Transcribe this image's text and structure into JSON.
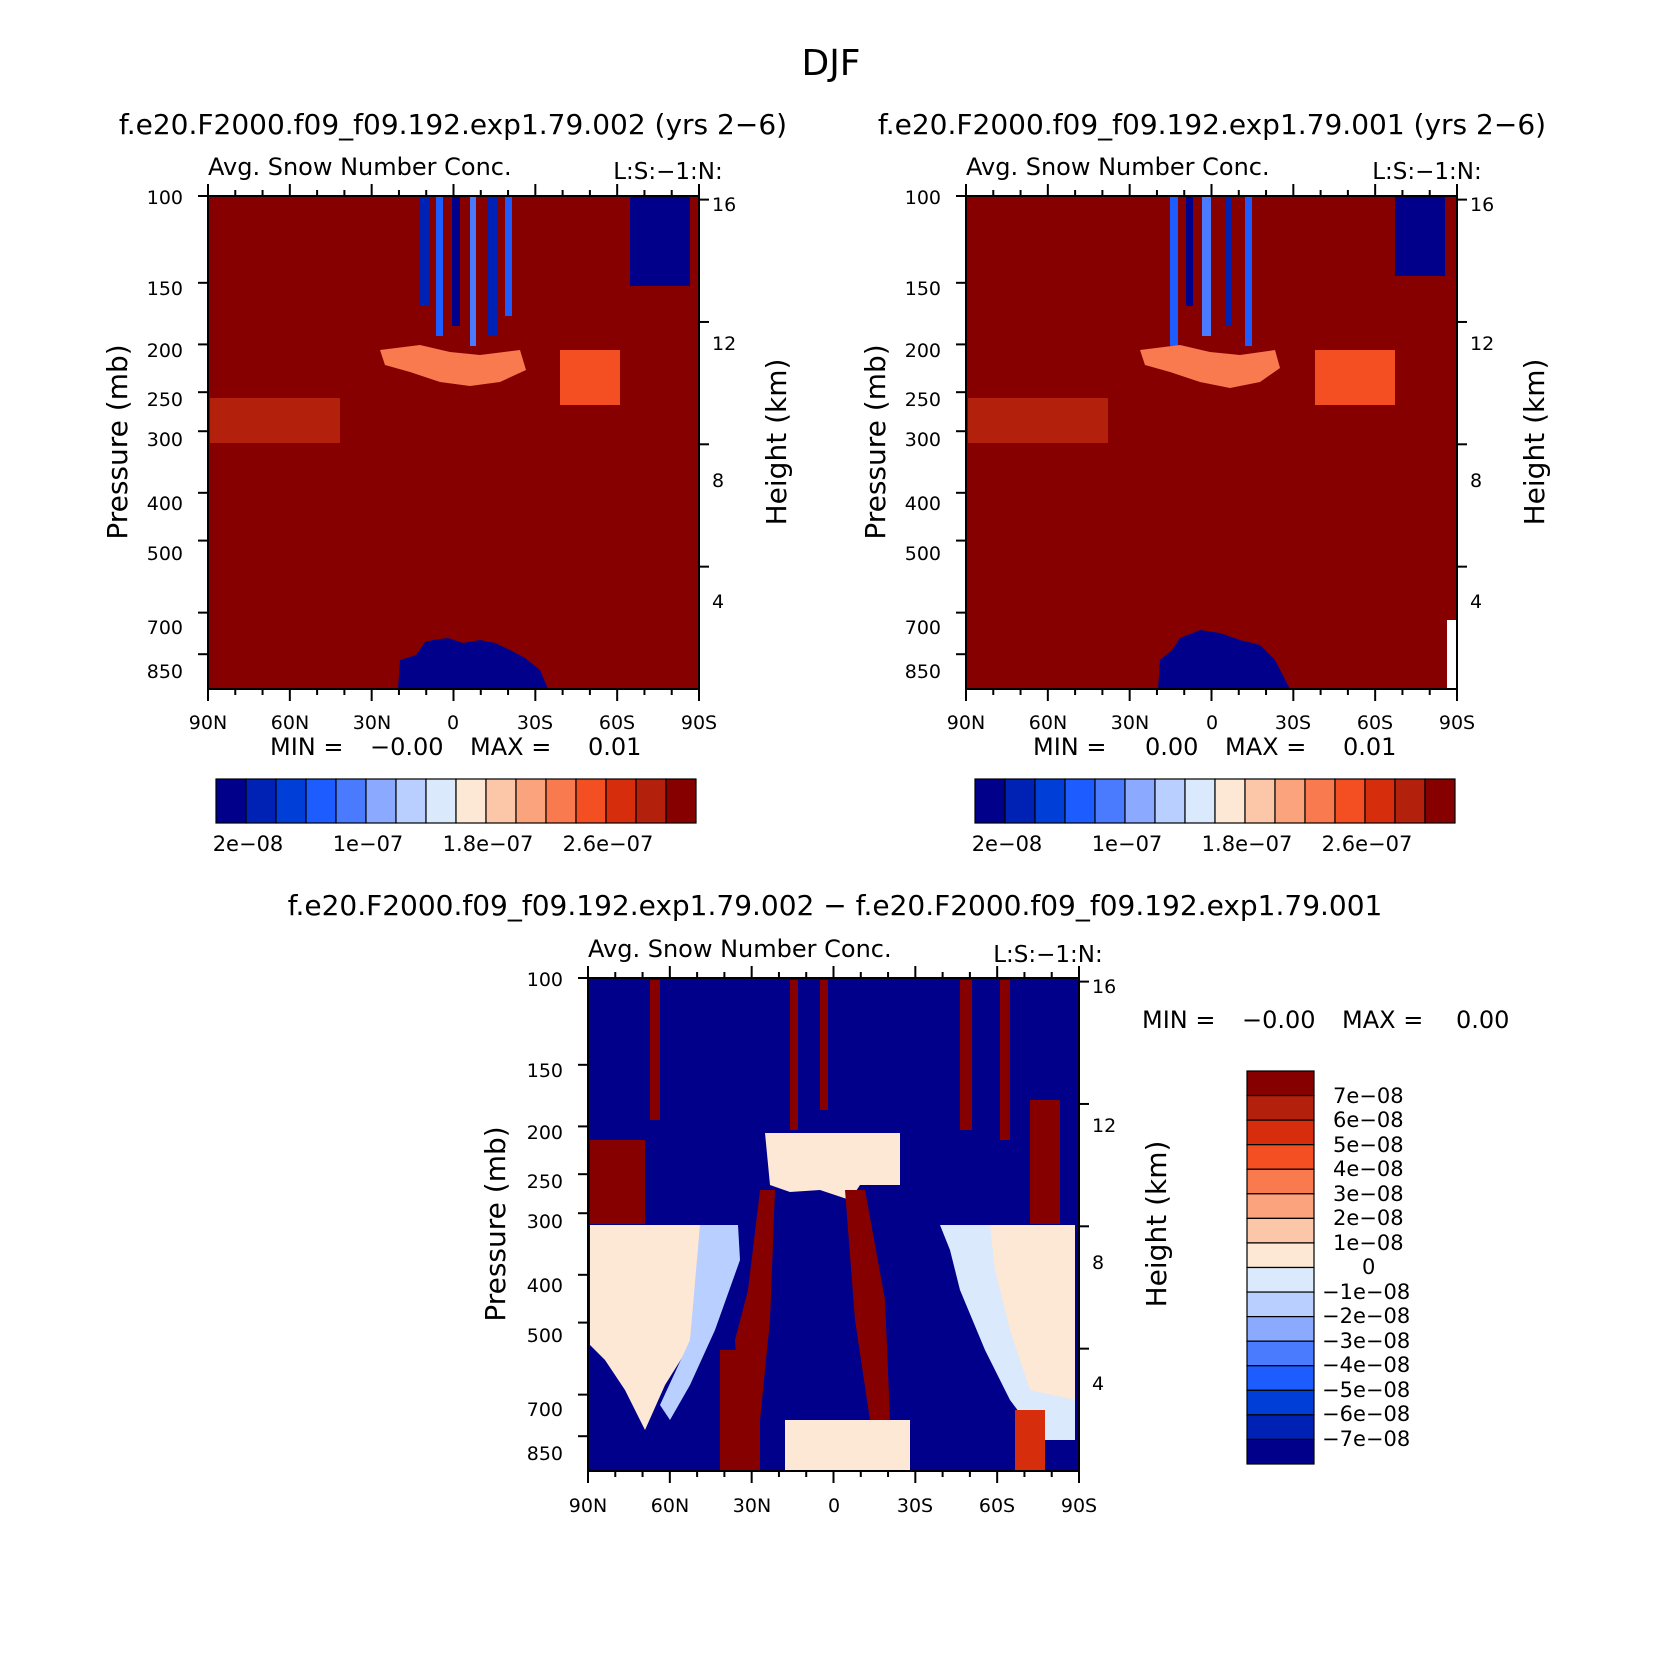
{
  "page_title": "DJF",
  "chart_data": [
    {
      "type": "heatmap",
      "run_label": "f.e20.F2000.f09_f09.192.exp1.79.002 (yrs 2−6)",
      "title": "Avg. Snow Number Conc.",
      "units_label": "L:S:−1:N:",
      "xlabel": "",
      "ylabel": "Pressure (mb)",
      "y2label": "Height (km)",
      "x_ticks": [
        "90N",
        "60N",
        "30N",
        "0",
        "30S",
        "60S",
        "90S"
      ],
      "y_ticks": [
        "100",
        "150",
        "200",
        "250",
        "300",
        "400",
        "500",
        "700",
        "850"
      ],
      "y_tick_values": [
        100,
        150,
        200,
        250,
        300,
        400,
        500,
        700,
        850
      ],
      "y2_ticks": [
        "16",
        "12",
        "8",
        "4"
      ],
      "y2_tick_values": [
        16,
        12,
        8,
        4
      ],
      "ylim": [
        100,
        1000
      ],
      "xlim": [
        90,
        -90
      ],
      "min_label": "MIN =",
      "min_value": "−0.00",
      "max_label": "MAX =",
      "max_value": "0.01",
      "colorbar_labels": [
        "2e−08",
        "1e−07",
        "1.8e−07",
        "2.6e−07"
      ],
      "colorbar_colors": [
        "#00008b",
        "#0022b4",
        "#003ed8",
        "#1d5cff",
        "#4a7bff",
        "#8aa9ff",
        "#b8cfff",
        "#dae9fb",
        "#fde8d5",
        "#fcc7a8",
        "#fba37c",
        "#f97a4e",
        "#f44f22",
        "#d62d0c",
        "#b3200b",
        "#870000"
      ]
    },
    {
      "type": "heatmap",
      "run_label": "f.e20.F2000.f09_f09.192.exp1.79.001 (yrs 2−6)",
      "title": "Avg. Snow Number Conc.",
      "units_label": "L:S:−1:N:",
      "xlabel": "",
      "ylabel": "Pressure (mb)",
      "y2label": "Height (km)",
      "x_ticks": [
        "90N",
        "60N",
        "30N",
        "0",
        "30S",
        "60S",
        "90S"
      ],
      "y_ticks": [
        "100",
        "150",
        "200",
        "250",
        "300",
        "400",
        "500",
        "700",
        "850"
      ],
      "y_tick_values": [
        100,
        150,
        200,
        250,
        300,
        400,
        500,
        700,
        850
      ],
      "y2_ticks": [
        "16",
        "12",
        "8",
        "4"
      ],
      "y2_tick_values": [
        16,
        12,
        8,
        4
      ],
      "ylim": [
        100,
        1000
      ],
      "xlim": [
        90,
        -90
      ],
      "min_label": "MIN =",
      "min_value": "0.00",
      "max_label": "MAX =",
      "max_value": "0.01",
      "colorbar_labels": [
        "2e−08",
        "1e−07",
        "1.8e−07",
        "2.6e−07"
      ],
      "colorbar_colors": [
        "#00008b",
        "#0022b4",
        "#003ed8",
        "#1d5cff",
        "#4a7bff",
        "#8aa9ff",
        "#b8cfff",
        "#dae9fb",
        "#fde8d5",
        "#fcc7a8",
        "#fba37c",
        "#f97a4e",
        "#f44f22",
        "#d62d0c",
        "#b3200b",
        "#870000"
      ]
    },
    {
      "type": "heatmap",
      "run_label": "f.e20.F2000.f09_f09.192.exp1.79.002 − f.e20.F2000.f09_f09.192.exp1.79.001",
      "title": "Avg. Snow Number Conc.",
      "units_label": "L:S:−1:N:",
      "xlabel": "",
      "ylabel": "Pressure (mb)",
      "y2label": "Height (km)",
      "x_ticks": [
        "90N",
        "60N",
        "30N",
        "0",
        "30S",
        "60S",
        "90S"
      ],
      "y_ticks": [
        "100",
        "150",
        "200",
        "250",
        "300",
        "400",
        "500",
        "700",
        "850"
      ],
      "y_tick_values": [
        100,
        150,
        200,
        250,
        300,
        400,
        500,
        700,
        850
      ],
      "y2_ticks": [
        "16",
        "12",
        "8",
        "4"
      ],
      "y2_tick_values": [
        16,
        12,
        8,
        4
      ],
      "ylim": [
        100,
        1000
      ],
      "xlim": [
        90,
        -90
      ],
      "min_label": "MIN =",
      "min_value": "−0.00",
      "max_label": "MAX =",
      "max_value": "0.00",
      "colorbar_labels": [
        "7e−08",
        "6e−08",
        "5e−08",
        "4e−08",
        "3e−08",
        "2e−08",
        "1e−08",
        "0",
        "−1e−08",
        "−2e−08",
        "−3e−08",
        "−4e−08",
        "−5e−08",
        "−6e−08",
        "−7e−08"
      ],
      "colorbar_colors": [
        "#870000",
        "#b3200b",
        "#d62d0c",
        "#f44f22",
        "#f97a4e",
        "#fba37c",
        "#fcc7a8",
        "#fde8d5",
        "#dae9fb",
        "#b8cfff",
        "#8aa9ff",
        "#4a7bff",
        "#1d5cff",
        "#003ed8",
        "#0022b4",
        "#00008b"
      ]
    }
  ]
}
